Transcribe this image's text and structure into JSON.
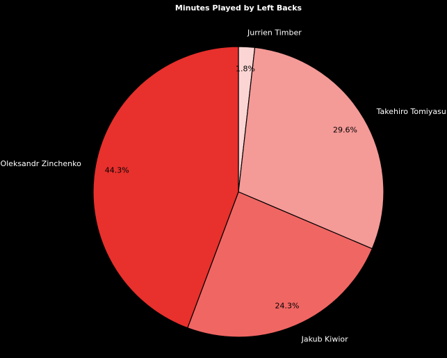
{
  "chart_data": {
    "type": "pie",
    "title": "Minutes Played by Left Backs",
    "categories": [
      "Jurrien Timber",
      "Takehiro Tomiyasu",
      "Jakub Kiwior",
      "Oleksandr Zinchenko"
    ],
    "values": [
      1.8,
      29.6,
      24.3,
      44.3
    ],
    "value_labels": [
      "1.8%",
      "29.6%",
      "24.3%",
      "44.3%"
    ],
    "colors": [
      "#fbd5d4",
      "#f49a97",
      "#f06663",
      "#e8302c"
    ],
    "start_angle_deg": 90,
    "direction": "clockwise",
    "edge_color": "#000000",
    "background": "#000000"
  }
}
